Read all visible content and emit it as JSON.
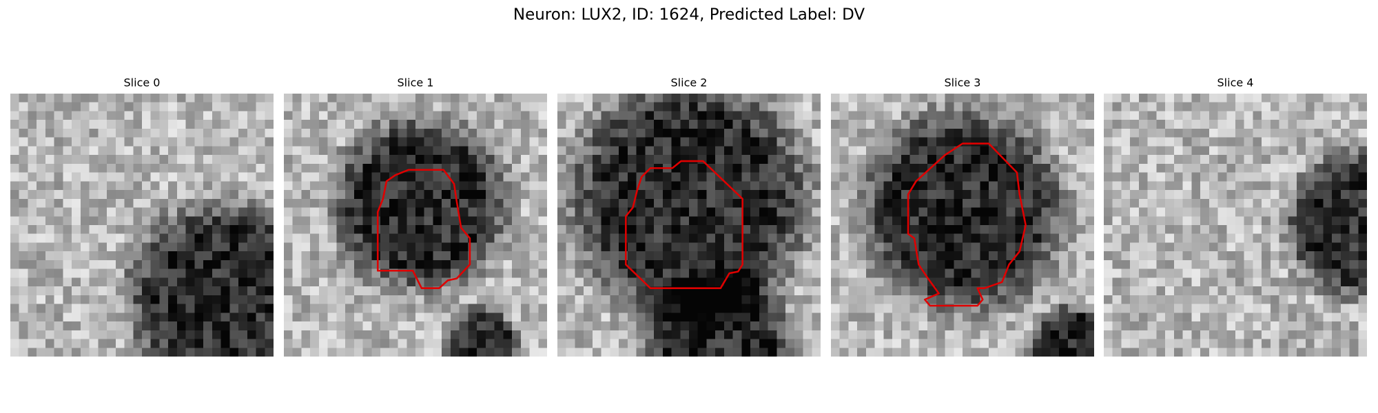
{
  "title": "Neuron: LUX2, ID: 1624, Predicted Label: DV",
  "panels": [
    {
      "title": "Slice 0"
    },
    {
      "title": "Slice 1"
    },
    {
      "title": "Slice 2"
    },
    {
      "title": "Slice 3"
    },
    {
      "title": "Slice 4"
    }
  ]
}
